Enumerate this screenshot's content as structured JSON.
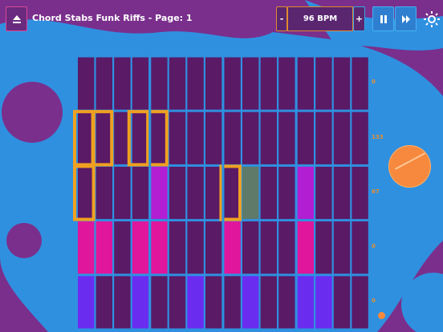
{
  "header": {
    "title": "Chord Stabs Funk Riffs - Page: 1",
    "minus_label": "-",
    "bpm_label": "96 BPM",
    "plus_label": "+"
  },
  "icons": {
    "eject": "eject-icon",
    "pause": "pause-icon",
    "fast_forward": "fast-forward-icon",
    "settings": "gear-icon"
  },
  "row_labels": [
    "0",
    "133",
    "67",
    "0",
    "0"
  ],
  "colors": {
    "background_purple": "#7a2f8c",
    "background_blue": "#2f90e0",
    "cell_off": "#5a1a66",
    "grid_line": "#2f90e0",
    "pink": "#e0169c",
    "magenta": "#b21ed2",
    "violet": "#6a2df0",
    "highlight": "#f0a020",
    "orange_knob": "#f6893d"
  },
  "grid": {
    "rows": 5,
    "cols": 16,
    "active_cells": [
      {
        "row": 1,
        "col": 0,
        "state": "highlight"
      },
      {
        "row": 1,
        "col": 1,
        "state": "highlight"
      },
      {
        "row": 1,
        "col": 3,
        "state": "highlight"
      },
      {
        "row": 1,
        "col": 4,
        "state": "highlight"
      },
      {
        "row": 2,
        "col": 0,
        "state": "highlight"
      },
      {
        "row": 2,
        "col": 4,
        "state": "magenta"
      },
      {
        "row": 2,
        "col": 8,
        "state": "highlight"
      },
      {
        "row": 2,
        "col": 9,
        "state": "green"
      },
      {
        "row": 2,
        "col": 12,
        "state": "magenta"
      },
      {
        "row": 3,
        "col": 0,
        "state": "pink"
      },
      {
        "row": 3,
        "col": 1,
        "state": "pink"
      },
      {
        "row": 3,
        "col": 3,
        "state": "pink"
      },
      {
        "row": 3,
        "col": 4,
        "state": "pink"
      },
      {
        "row": 3,
        "col": 8,
        "state": "pink"
      },
      {
        "row": 3,
        "col": 12,
        "state": "pink"
      },
      {
        "row": 4,
        "col": 0,
        "state": "violet"
      },
      {
        "row": 4,
        "col": 3,
        "state": "violet"
      },
      {
        "row": 4,
        "col": 6,
        "state": "violet"
      },
      {
        "row": 4,
        "col": 9,
        "state": "violet"
      },
      {
        "row": 4,
        "col": 12,
        "state": "violet"
      },
      {
        "row": 4,
        "col": 13,
        "state": "violet"
      }
    ]
  }
}
